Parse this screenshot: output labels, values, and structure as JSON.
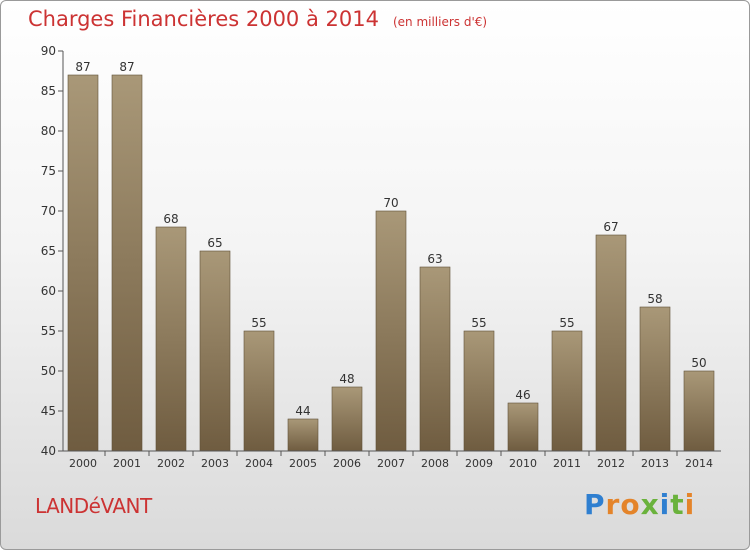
{
  "header": {
    "title": "Charges Financières 2000 à 2014",
    "unit": "(en milliers d'€)"
  },
  "footer": {
    "commune": "LANDéVANT",
    "logo_text": "Proxiti"
  },
  "colors": {
    "title": "#cc3333",
    "bar_top": "#a99878",
    "bar_bottom": "#6f5c40",
    "axis": "#555555"
  },
  "chart_data": {
    "type": "bar",
    "categories": [
      "2000",
      "2001",
      "2002",
      "2003",
      "2004",
      "2005",
      "2006",
      "2007",
      "2008",
      "2009",
      "2010",
      "2011",
      "2012",
      "2013",
      "2014"
    ],
    "values": [
      87,
      87,
      68,
      65,
      55,
      44,
      48,
      70,
      63,
      55,
      46,
      55,
      67,
      58,
      50
    ],
    "ylim": [
      40,
      90
    ],
    "yticks": [
      40,
      45,
      50,
      55,
      60,
      65,
      70,
      75,
      80,
      85,
      90
    ],
    "data_labels": true,
    "grid": false
  }
}
